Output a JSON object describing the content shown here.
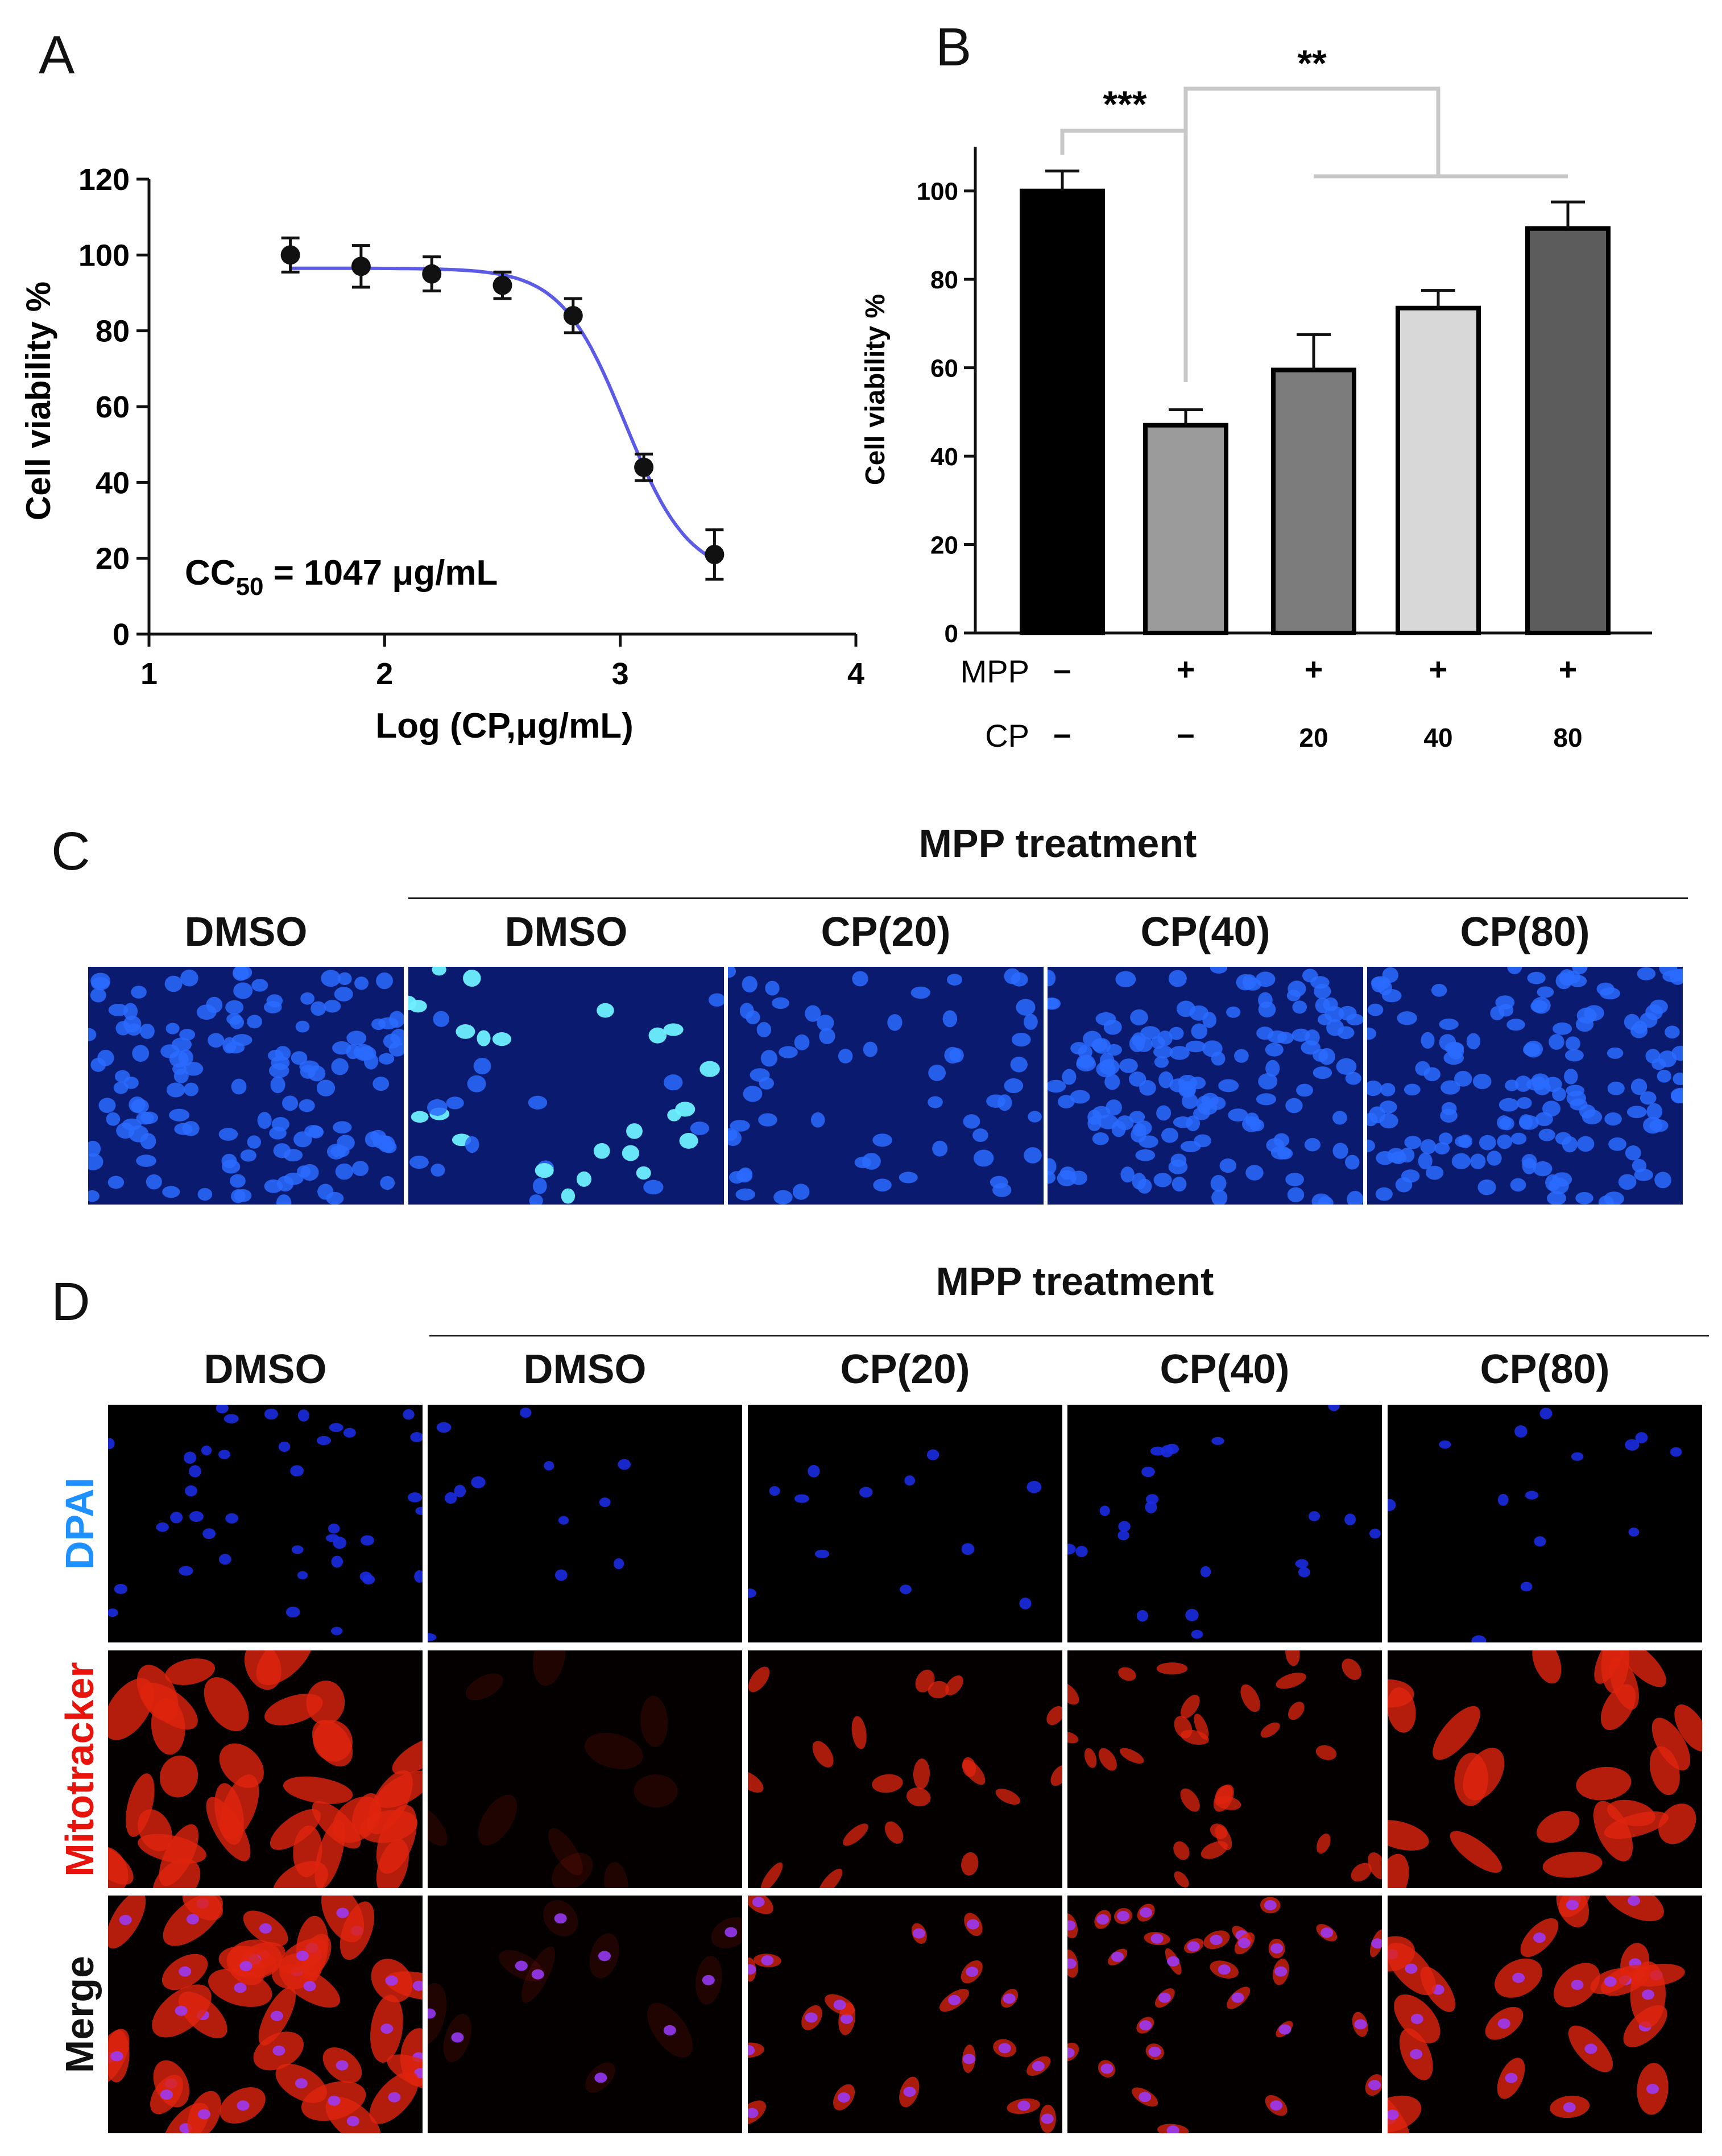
{
  "panels": {
    "a": "A",
    "b": "B",
    "c": "C",
    "d": "D"
  },
  "chart_data": [
    {
      "type": "scatter",
      "panel": "A",
      "xlabel": "Log (CP,μg/mL)",
      "ylabel": "Cell viability %",
      "xlim": [
        1,
        4
      ],
      "ylim": [
        0,
        120
      ],
      "xticks": [
        "1",
        "2",
        "3",
        "4"
      ],
      "yticks": [
        "0",
        "20",
        "40",
        "60",
        "80",
        "100",
        "120"
      ],
      "annotation": {
        "prefix": "CC",
        "sub": "50",
        "suffix": " = 1047 μg/mL"
      },
      "series": [
        {
          "name": "Cell viability",
          "x": [
            1.6,
            1.9,
            2.2,
            2.5,
            2.8,
            3.1,
            3.4
          ],
          "y": [
            100,
            97,
            95,
            92,
            84,
            44,
            21
          ],
          "err": [
            4.5,
            5.5,
            4.5,
            3.5,
            4.5,
            3.5,
            6.5
          ]
        }
      ],
      "fit": {
        "top": 96.5,
        "bottom": 15,
        "log_cc50": 3.02,
        "slope": 3.2,
        "x_range": [
          1.6,
          3.42
        ],
        "color": "#5b5be6"
      }
    },
    {
      "type": "bar",
      "panel": "B",
      "ylabel": "Cell viability %",
      "ylim": [
        0,
        110
      ],
      "yticks": [
        "0",
        "20",
        "40",
        "60",
        "80",
        "100"
      ],
      "categories": [
        "MPP− CP−",
        "MPP+ CP−",
        "MPP+ CP20",
        "MPP+ CP40",
        "MPP+ CP80"
      ],
      "values": [
        100,
        47,
        59.5,
        73.5,
        91.5
      ],
      "errors": [
        4.5,
        3.5,
        8,
        4,
        6
      ],
      "colors": [
        "#000000",
        "#9b9b9b",
        "#7c7c7c",
        "#d8d8d8",
        "#5c5c5c"
      ],
      "rows": [
        {
          "label": "MPP",
          "values": [
            "–",
            "+",
            "+",
            "+",
            "+"
          ]
        },
        {
          "label": "CP",
          "values": [
            "–",
            "–",
            "20",
            "40",
            "80"
          ]
        }
      ],
      "significance": [
        "***",
        "**"
      ]
    }
  ],
  "panel_c": {
    "header": "MPP treatment",
    "columns": [
      "DMSO",
      "DMSO",
      "CP(20)",
      "CP(40)",
      "CP(80)"
    ]
  },
  "panel_d": {
    "header": "MPP treatment",
    "columns": [
      "DMSO",
      "DMSO",
      "CP(20)",
      "CP(40)",
      "CP(80)"
    ],
    "rows": [
      {
        "label": "DPAI",
        "color": "#1e90ff"
      },
      {
        "label": "Mitotracker",
        "color": "#e8140c"
      },
      {
        "label": "Merge",
        "color": "#111111"
      }
    ]
  }
}
